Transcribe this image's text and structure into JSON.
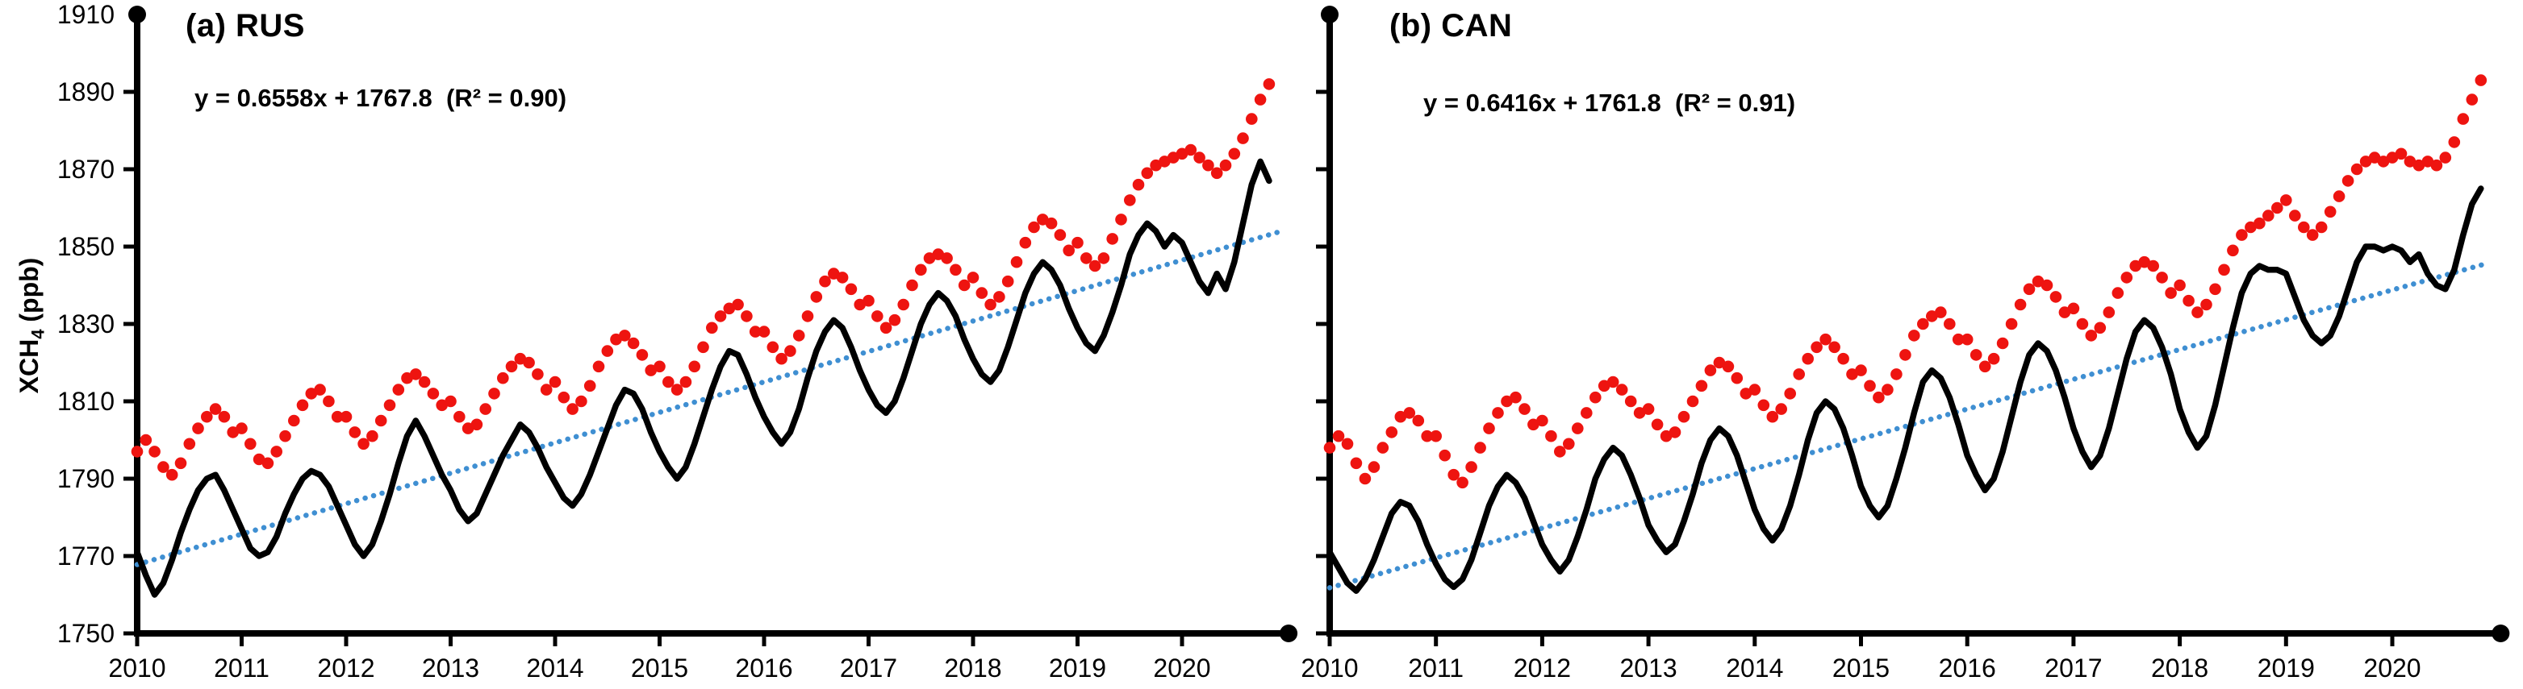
{
  "figure": {
    "background": "#ffffff"
  },
  "colors": {
    "axis": "#000000",
    "text": "#000000",
    "black_line": "#000000",
    "red_dots": "#ee1410",
    "blue_trend_dots": "#3f8fd2"
  },
  "y_axis": {
    "label_prefix": "XCH",
    "label_sub": "4",
    "label_suffix": " (ppb)",
    "tick_values": [
      1750,
      1770,
      1790,
      1810,
      1830,
      1850,
      1870,
      1890,
      1910
    ],
    "tick_labels": [
      "1750",
      "1770",
      "1790",
      "1810",
      "1830",
      "1850",
      "1870",
      "1890",
      "1910"
    ],
    "min": 1750,
    "max": 1910
  },
  "x_axis": {
    "tick_values": [
      2010,
      2011,
      2012,
      2013,
      2014,
      2015,
      2016,
      2017,
      2018,
      2019,
      2020
    ],
    "tick_labels": [
      "2010",
      "2011",
      "2012",
      "2013",
      "2014",
      "2015",
      "2016",
      "2017",
      "2018",
      "2019",
      "2020"
    ],
    "start": 2010,
    "end": 2021
  },
  "chart_data": [
    {
      "type": "line",
      "panel_label": "(a) RUS",
      "region": "RUS",
      "equation_text": "y = 0.6558x + 1767.8  (R² = 0.90)",
      "trend_fit": {
        "slope": 0.6558,
        "intercept": 1767.8,
        "r_squared": 0.9
      },
      "x_unit": "month",
      "x_start_year": 2010,
      "n_months": 131,
      "ylabel": "XCH4 (ppb)",
      "ylim": [
        1750,
        1910
      ],
      "xlim": [
        2010,
        2021
      ],
      "series": [
        {
          "name": "xch4-monthly-black-solid-line",
          "style": "solid-black-line",
          "values": [
            1771,
            1765,
            1760,
            1763,
            1769,
            1776,
            1782,
            1787,
            1790,
            1791,
            1787,
            1782,
            1777,
            1772,
            1770,
            1771,
            1775,
            1781,
            1786,
            1790,
            1792,
            1791,
            1788,
            1783,
            1778,
            1773,
            1770,
            1773,
            1779,
            1786,
            1794,
            1801,
            1805,
            1801,
            1796,
            1791,
            1787,
            1782,
            1779,
            1781,
            1786,
            1791,
            1796,
            1800,
            1804,
            1802,
            1798,
            1793,
            1789,
            1785,
            1783,
            1786,
            1791,
            1797,
            1803,
            1809,
            1813,
            1812,
            1808,
            1802,
            1797,
            1793,
            1790,
            1793,
            1799,
            1806,
            1813,
            1819,
            1823,
            1822,
            1817,
            1811,
            1806,
            1802,
            1799,
            1802,
            1808,
            1816,
            1823,
            1828,
            1831,
            1829,
            1824,
            1818,
            1813,
            1809,
            1807,
            1810,
            1816,
            1823,
            1830,
            1835,
            1838,
            1836,
            1832,
            1826,
            1821,
            1817,
            1815,
            1818,
            1824,
            1831,
            1838,
            1843,
            1846,
            1844,
            1840,
            1834,
            1829,
            1825,
            1823,
            1827,
            1833,
            1840,
            1848,
            1853,
            1856,
            1854,
            1850,
            1853,
            1851,
            1846,
            1841,
            1838,
            1843,
            1839,
            1846,
            1856,
            1866,
            1872,
            1867
          ]
        },
        {
          "name": "xch4-monthly-red-dots",
          "style": "red-dots",
          "values": [
            1797,
            1800,
            1797,
            1793,
            1791,
            1794,
            1799,
            1803,
            1806,
            1808,
            1806,
            1802,
            1803,
            1799,
            1795,
            1794,
            1797,
            1801,
            1805,
            1809,
            1812,
            1813,
            1810,
            1806,
            1806,
            1802,
            1799,
            1801,
            1805,
            1809,
            1813,
            1816,
            1817,
            1815,
            1812,
            1809,
            1810,
            1806,
            1803,
            1804,
            1808,
            1812,
            1816,
            1819,
            1821,
            1820,
            1817,
            1813,
            1815,
            1811,
            1808,
            1810,
            1814,
            1819,
            1823,
            1826,
            1827,
            1825,
            1822,
            1818,
            1819,
            1815,
            1813,
            1815,
            1819,
            1824,
            1829,
            1832,
            1834,
            1835,
            1832,
            1828,
            1828,
            1824,
            1821,
            1823,
            1827,
            1832,
            1837,
            1841,
            1843,
            1842,
            1839,
            1835,
            1836,
            1832,
            1829,
            1831,
            1835,
            1840,
            1844,
            1847,
            1848,
            1847,
            1844,
            1840,
            1842,
            1838,
            1835,
            1837,
            1841,
            1846,
            1851,
            1855,
            1857,
            1856,
            1853,
            1849,
            1851,
            1847,
            1845,
            1847,
            1852,
            1857,
            1862,
            1866,
            1869,
            1871,
            1872,
            1873,
            1874,
            1875,
            1873,
            1871,
            1869,
            1871,
            1874,
            1878,
            1883,
            1888,
            1892
          ]
        },
        {
          "name": "linear-trend-blue-dotted-line",
          "style": "blue-dotted-line",
          "from_fit": true
        }
      ]
    },
    {
      "type": "line",
      "panel_label": "(b) CAN",
      "region": "CAN",
      "equation_text": "y = 0.6416x + 1761.8  (R² = 0.91)",
      "trend_fit": {
        "slope": 0.6416,
        "intercept": 1761.8,
        "r_squared": 0.91
      },
      "x_unit": "month",
      "x_start_year": 2010,
      "n_months": 131,
      "ylabel": "XCH4 (ppb)",
      "ylim": [
        1750,
        1910
      ],
      "xlim": [
        2010,
        2021
      ],
      "series": [
        {
          "name": "xch4-monthly-black-solid-line",
          "style": "solid-black-line",
          "values": [
            1771,
            1767,
            1763,
            1761,
            1764,
            1769,
            1775,
            1781,
            1784,
            1783,
            1779,
            1773,
            1768,
            1764,
            1762,
            1764,
            1769,
            1776,
            1783,
            1788,
            1791,
            1789,
            1785,
            1779,
            1773,
            1769,
            1766,
            1769,
            1775,
            1782,
            1790,
            1795,
            1798,
            1796,
            1791,
            1785,
            1778,
            1774,
            1771,
            1773,
            1779,
            1786,
            1794,
            1800,
            1803,
            1801,
            1796,
            1789,
            1782,
            1777,
            1774,
            1777,
            1783,
            1791,
            1800,
            1807,
            1810,
            1808,
            1803,
            1796,
            1788,
            1783,
            1780,
            1783,
            1790,
            1798,
            1807,
            1815,
            1818,
            1816,
            1811,
            1804,
            1796,
            1791,
            1787,
            1790,
            1797,
            1806,
            1815,
            1822,
            1825,
            1823,
            1818,
            1811,
            1803,
            1797,
            1793,
            1796,
            1803,
            1812,
            1821,
            1828,
            1831,
            1829,
            1824,
            1817,
            1808,
            1802,
            1798,
            1801,
            1809,
            1819,
            1829,
            1838,
            1843,
            1845,
            1844,
            1844,
            1843,
            1837,
            1831,
            1827,
            1825,
            1827,
            1832,
            1839,
            1846,
            1850,
            1850,
            1849,
            1850,
            1849,
            1846,
            1848,
            1843,
            1840,
            1839,
            1844,
            1853,
            1861,
            1865
          ]
        },
        {
          "name": "xch4-monthly-red-dots",
          "style": "red-dots",
          "values": [
            1798,
            1801,
            1799,
            1794,
            1790,
            1793,
            1798,
            1802,
            1806,
            1807,
            1805,
            1801,
            1801,
            1796,
            1791,
            1789,
            1793,
            1798,
            1803,
            1807,
            1810,
            1811,
            1808,
            1804,
            1805,
            1801,
            1797,
            1799,
            1803,
            1807,
            1811,
            1814,
            1815,
            1813,
            1810,
            1807,
            1808,
            1804,
            1801,
            1802,
            1806,
            1810,
            1814,
            1818,
            1820,
            1819,
            1816,
            1812,
            1813,
            1809,
            1806,
            1808,
            1812,
            1817,
            1821,
            1824,
            1826,
            1824,
            1821,
            1817,
            1818,
            1814,
            1811,
            1813,
            1817,
            1822,
            1827,
            1830,
            1832,
            1833,
            1830,
            1826,
            1826,
            1822,
            1819,
            1821,
            1825,
            1830,
            1835,
            1839,
            1841,
            1840,
            1837,
            1833,
            1834,
            1830,
            1827,
            1829,
            1833,
            1838,
            1842,
            1845,
            1846,
            1845,
            1842,
            1838,
            1840,
            1836,
            1833,
            1835,
            1839,
            1844,
            1849,
            1853,
            1855,
            1856,
            1858,
            1860,
            1862,
            1858,
            1855,
            1853,
            1855,
            1859,
            1863,
            1867,
            1870,
            1872,
            1873,
            1872,
            1873,
            1874,
            1872,
            1871,
            1872,
            1871,
            1873,
            1877,
            1883,
            1888,
            1893
          ]
        },
        {
          "name": "linear-trend-blue-dotted-line",
          "style": "blue-dotted-line",
          "from_fit": true
        }
      ]
    }
  ]
}
